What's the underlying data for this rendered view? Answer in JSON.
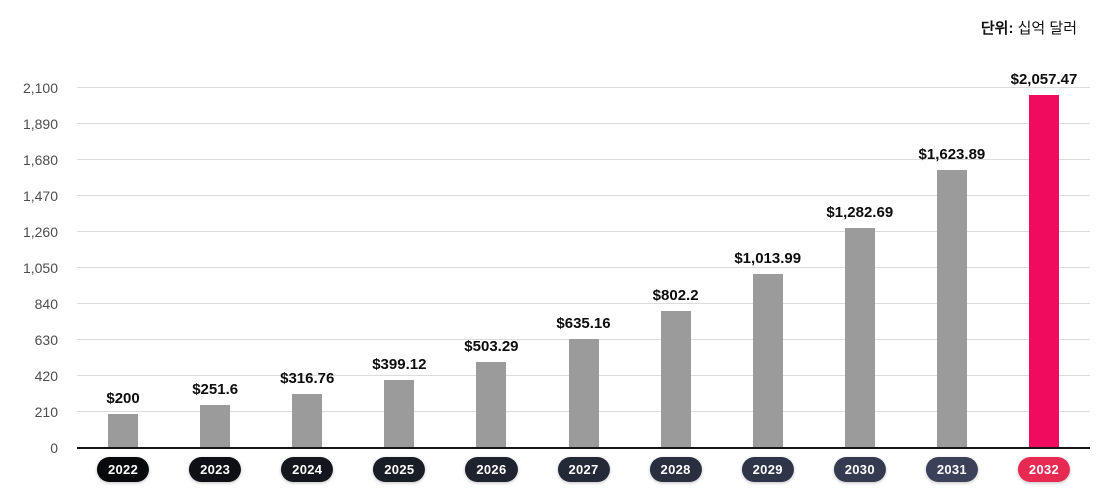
{
  "unit_label": {
    "prefix": "단위:",
    "text": " 십억 달러"
  },
  "chart_data": {
    "type": "bar",
    "title": "",
    "xlabel": "",
    "ylabel": "단위: 십억 달러 (Unit: billion dollars)",
    "categories": [
      "2022",
      "2023",
      "2024",
      "2025",
      "2026",
      "2027",
      "2028",
      "2029",
      "2030",
      "2031",
      "2032"
    ],
    "values": [
      200,
      251.6,
      316.76,
      399.12,
      503.29,
      635.16,
      802.2,
      1013.99,
      1282.69,
      1623.89,
      2057.47
    ],
    "value_labels": [
      "$200",
      "$251.6",
      "$316.76",
      "$399.12",
      "$503.29",
      "$635.16",
      "$802.2",
      "$1,013.99",
      "$1,282.69",
      "$1,623.89",
      "$2,057.47"
    ],
    "ylim": [
      0,
      2100
    ],
    "ytick_step": 210,
    "ytick_labels": [
      "0",
      "210",
      "420",
      "630",
      "840",
      "1,050",
      "1,260",
      "1,470",
      "1,680",
      "1,890",
      "2,100"
    ],
    "grid": true,
    "legend": "none",
    "colors": {
      "bar_default": "#9b9b9b",
      "bar_highlight": "#f10b5f",
      "gridline": "#dcdcdc",
      "baseline": "#161616",
      "ytick_text": "#4d4d4d",
      "value_text": "#0d0d0d",
      "pill_text": "#ffffff",
      "pill_highlight": "#e82952"
    },
    "highlight_index": 10,
    "pill_colors": [
      "#08090c",
      "#0e1015",
      "#14161d",
      "#191d26",
      "#1f232f",
      "#242937",
      "#2a2f40",
      "#2f3548",
      "#343b51",
      "#3a4159",
      "#e82952"
    ]
  }
}
